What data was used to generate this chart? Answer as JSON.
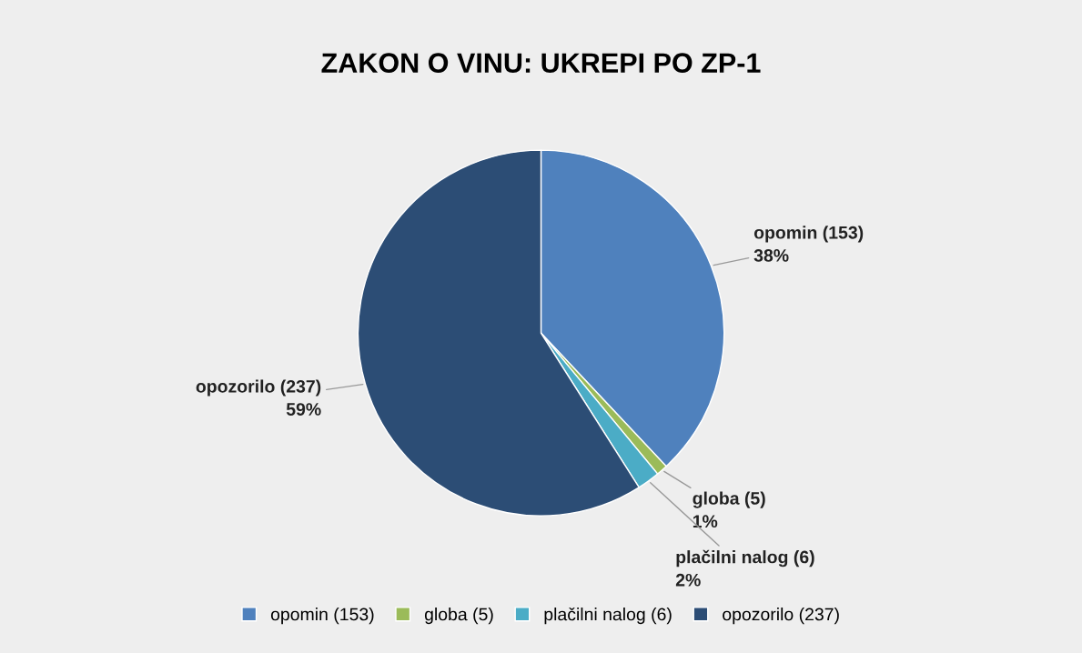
{
  "chart_data": {
    "type": "pie",
    "title": "ZAKON O VINU: UKREPI PO ZP-1",
    "categories": [
      "opomin (153)",
      "globa (5)",
      "plačilni nalog (6)",
      "opozorilo (237)"
    ],
    "values": [
      38,
      1,
      2,
      59
    ],
    "colors": [
      "#4f81bd",
      "#9bbb59",
      "#4bacc6",
      "#2c4d75"
    ],
    "value_labels": [
      "38%",
      "1%",
      "2%",
      "59%"
    ],
    "legend": "bottom"
  }
}
